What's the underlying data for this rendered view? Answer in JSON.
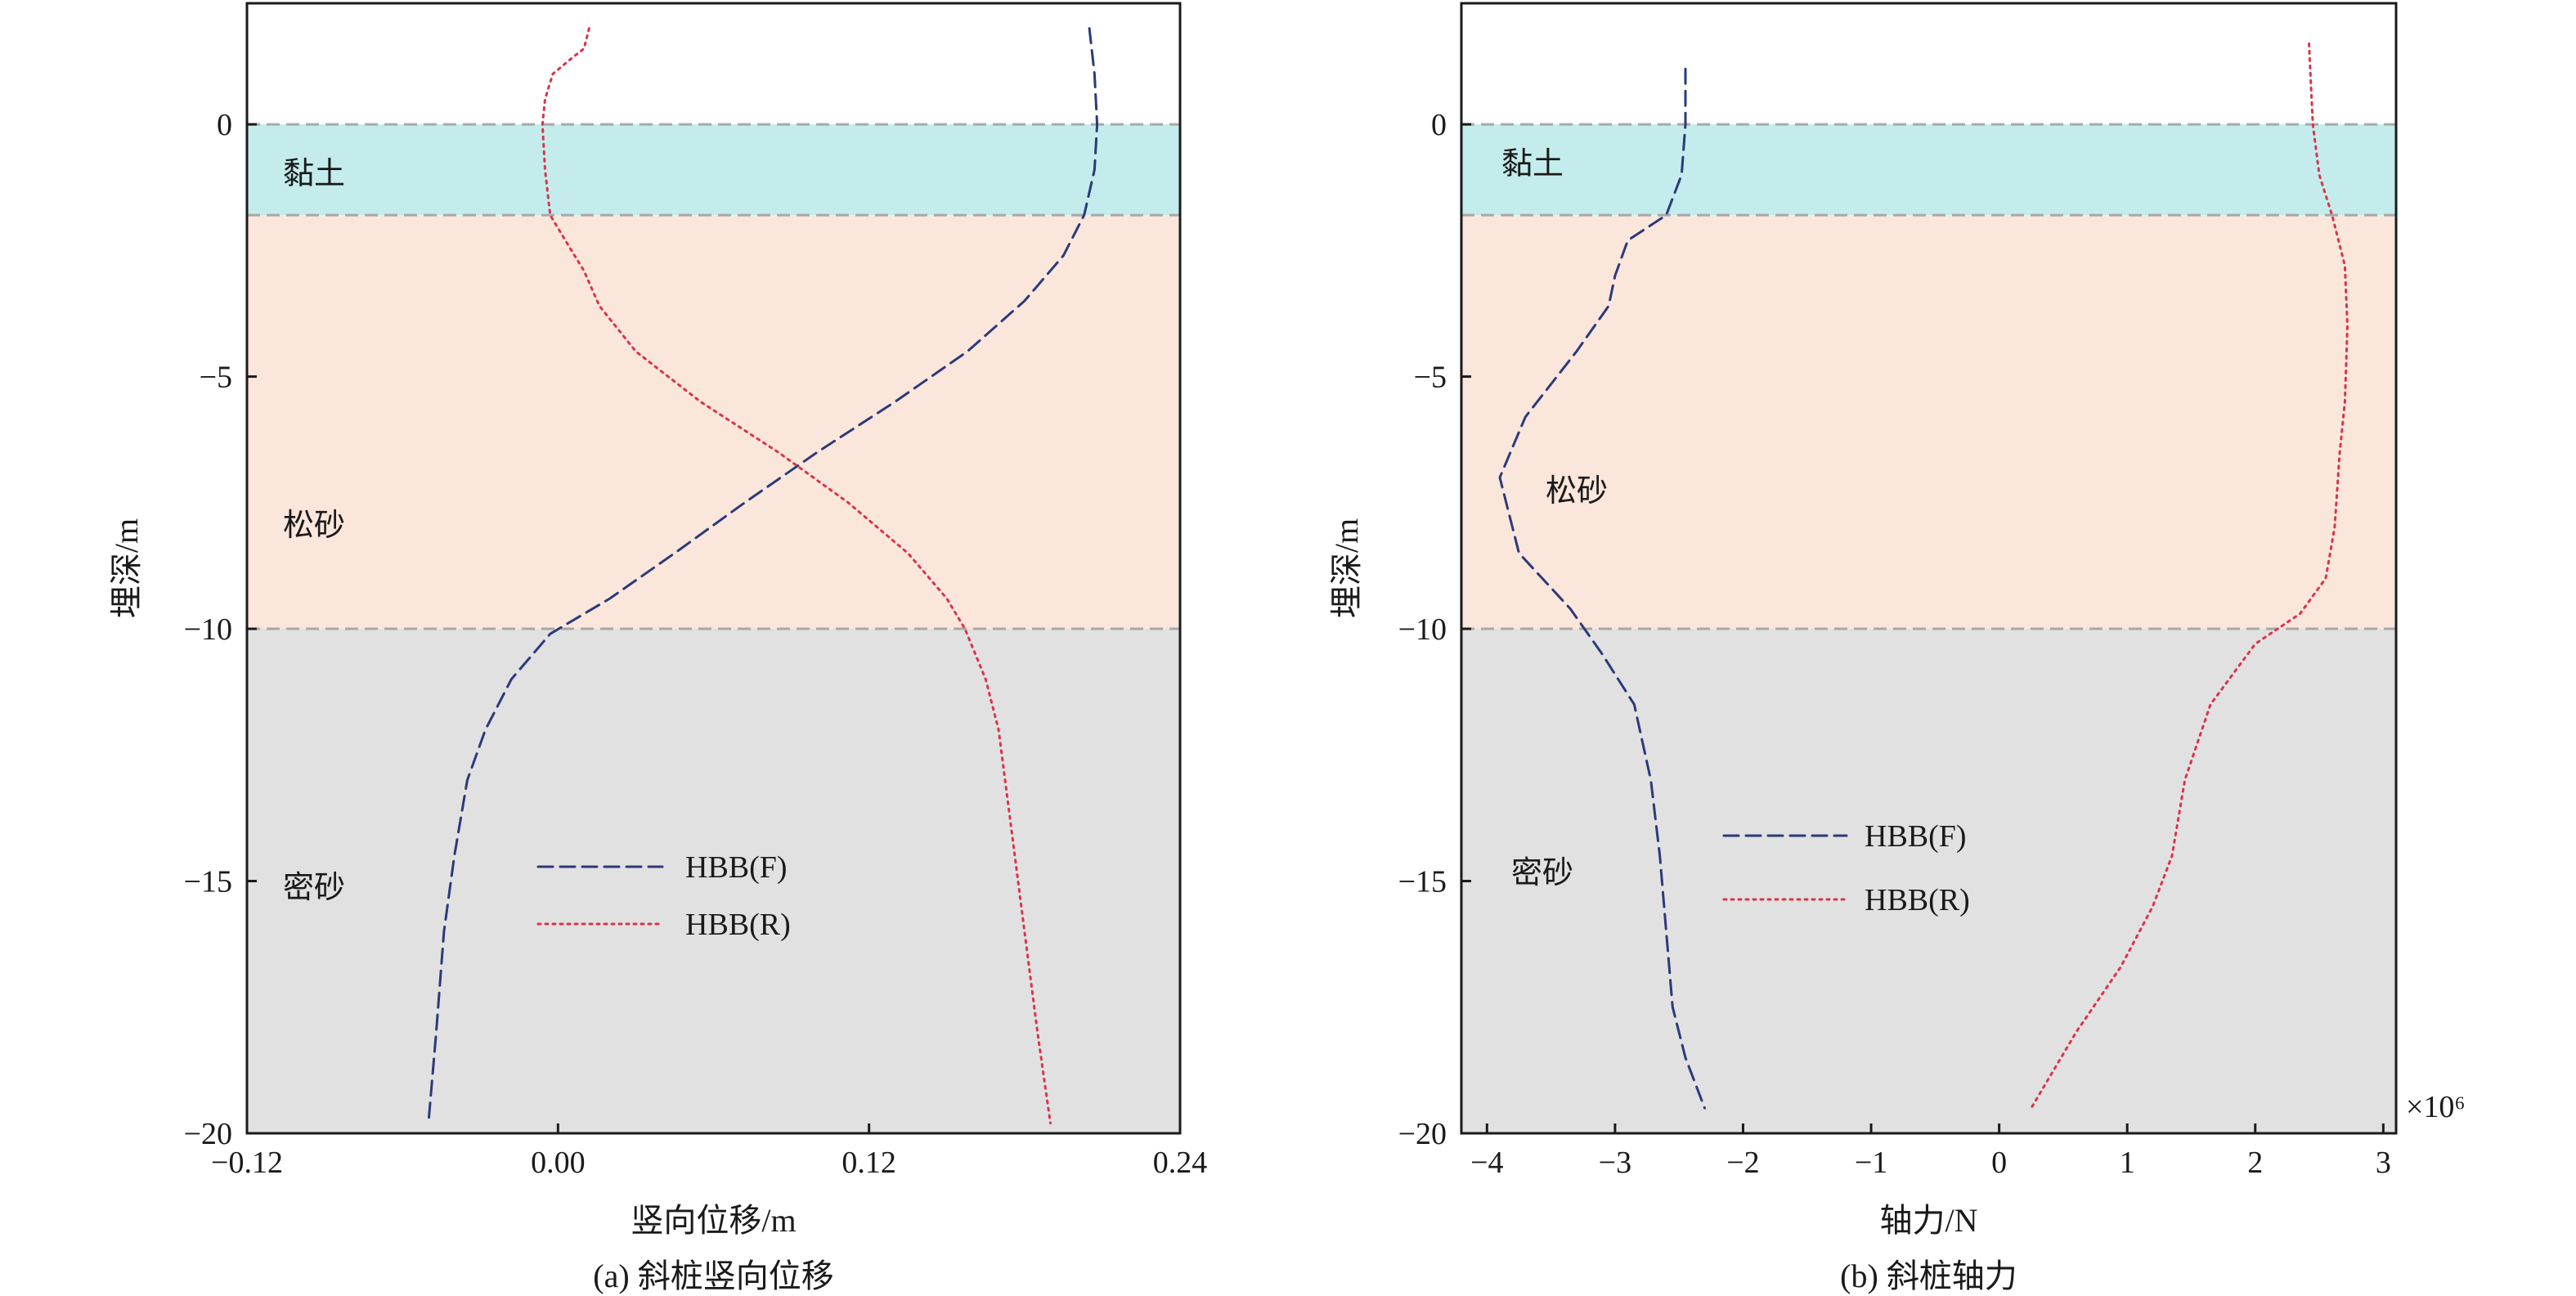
{
  "chart_data": [
    {
      "type": "line",
      "caption": "(a) 斜桩竖向位移",
      "xlabel": "竖向位移/m",
      "ylabel": "埋深/m",
      "xlim": [
        -0.12,
        0.24
      ],
      "ylim": [
        -20,
        2.4
      ],
      "xticks": [
        -0.12,
        0.0,
        0.12,
        0.24
      ],
      "xtick_labels": [
        "−0.12",
        "0.00",
        "0.12",
        "0.24"
      ],
      "yticks": [
        0,
        -5,
        -10,
        -15,
        -20
      ],
      "ytick_labels": [
        "0",
        "−5",
        "−10",
        "−15",
        "−20"
      ],
      "grid": false,
      "legend": {
        "position": "lower-center",
        "entries": [
          "HBB(F)",
          "HBB(R)"
        ]
      },
      "layers": [
        {
          "name": "黏土",
          "top": 0,
          "bottom": -1.8,
          "color": "#c4ecec"
        },
        {
          "name": "松砂",
          "top": -1.8,
          "bottom": -10,
          "color": "#fbe6dc"
        },
        {
          "name": "密砂",
          "top": -10,
          "bottom": -20,
          "color": "#e1e1e1"
        }
      ],
      "series": [
        {
          "name": "HBB(F)",
          "style": "dashed",
          "color": "#2b3a7a",
          "x": [
            0.205,
            0.207,
            0.208,
            0.207,
            0.203,
            0.195,
            0.18,
            0.158,
            0.13,
            0.1,
            0.072,
            0.045,
            0.02,
            -0.003,
            -0.018,
            -0.028,
            -0.035,
            -0.04,
            -0.044,
            -0.047,
            -0.05
          ],
          "y": [
            1.9,
            1.0,
            0,
            -0.9,
            -1.8,
            -2.6,
            -3.5,
            -4.5,
            -5.5,
            -6.5,
            -7.5,
            -8.5,
            -9.4,
            -10.1,
            -11,
            -12,
            -13,
            -14.5,
            -16,
            -18,
            -19.8
          ]
        },
        {
          "name": "HBB(R)",
          "style": "dotted",
          "color": "#d9344a",
          "x": [
            0.012,
            0.01,
            0.005,
            -0.002,
            -0.005,
            -0.006,
            -0.005,
            -0.003,
            0.004,
            0.01,
            0.016,
            0.03,
            0.055,
            0.085,
            0.112,
            0.135,
            0.15,
            0.157,
            0.165,
            0.17,
            0.175,
            0.18,
            0.185,
            0.19
          ],
          "y": [
            1.9,
            1.5,
            1.3,
            1.0,
            0.5,
            0,
            -0.9,
            -1.8,
            -2.4,
            -2.9,
            -3.6,
            -4.5,
            -5.5,
            -6.5,
            -7.5,
            -8.5,
            -9.4,
            -10,
            -11,
            -12,
            -14,
            -16,
            -18,
            -19.8
          ]
        }
      ]
    },
    {
      "type": "line",
      "caption": "(b) 斜桩轴力",
      "xlabel": "轴力/N",
      "ylabel": "埋深/m",
      "xlim": [
        -4.2,
        3.1
      ],
      "ylim": [
        -20,
        2.4
      ],
      "x_multiplier": "×10⁶",
      "xticks": [
        -4,
        -3,
        -2,
        -1,
        0,
        1,
        2,
        3
      ],
      "xtick_labels": [
        "−4",
        "−3",
        "−2",
        "−1",
        "0",
        "1",
        "2",
        "3"
      ],
      "yticks": [
        0,
        -5,
        -10,
        -15,
        -20
      ],
      "ytick_labels": [
        "0",
        "−5",
        "−10",
        "−15",
        "−20"
      ],
      "grid": false,
      "legend": {
        "position": "lower-center",
        "entries": [
          "HBB(F)",
          "HBB(R)"
        ]
      },
      "layers": [
        {
          "name": "黏土",
          "top": 0,
          "bottom": -1.8,
          "color": "#c4ecec"
        },
        {
          "name": "松砂",
          "top": -1.8,
          "bottom": -10,
          "color": "#fbe6dc"
        },
        {
          "name": "密砂",
          "top": -10,
          "bottom": -20,
          "color": "#e1e1e1"
        }
      ],
      "series": [
        {
          "name": "HBB(F)",
          "style": "dashed",
          "color": "#2b3a7a",
          "x": [
            -2.45,
            -2.45,
            -2.48,
            -2.6,
            -2.9,
            -3.0,
            -3.05,
            -3.3,
            -3.7,
            -3.9,
            -3.75,
            -3.35,
            -3.1,
            -2.85,
            -2.72,
            -2.65,
            -2.6,
            -2.55,
            -2.45,
            -2.3
          ],
          "y": [
            1.1,
            0,
            -1,
            -1.8,
            -2.3,
            -3,
            -3.6,
            -4.5,
            -5.8,
            -7.0,
            -8.5,
            -9.6,
            -10.5,
            -11.5,
            -13,
            -14.5,
            -16,
            -17.5,
            -18.5,
            -19.5
          ],
          "units": "×10⁶ N"
        },
        {
          "name": "HBB(R)",
          "style": "dotted",
          "color": "#d9344a",
          "x": [
            2.42,
            2.45,
            2.5,
            2.6,
            2.7,
            2.72,
            2.7,
            2.66,
            2.62,
            2.55,
            2.35,
            2.0,
            1.65,
            1.45,
            1.35,
            1.2,
            0.95,
            0.6,
            0.25
          ],
          "y": [
            1.6,
            0,
            -1,
            -1.8,
            -2.8,
            -4,
            -5.5,
            -6.5,
            -8,
            -9,
            -9.7,
            -10.3,
            -11.5,
            -13,
            -14.5,
            -15.5,
            -16.7,
            -18,
            -19.5
          ],
          "units": "×10⁶ N"
        }
      ]
    }
  ]
}
